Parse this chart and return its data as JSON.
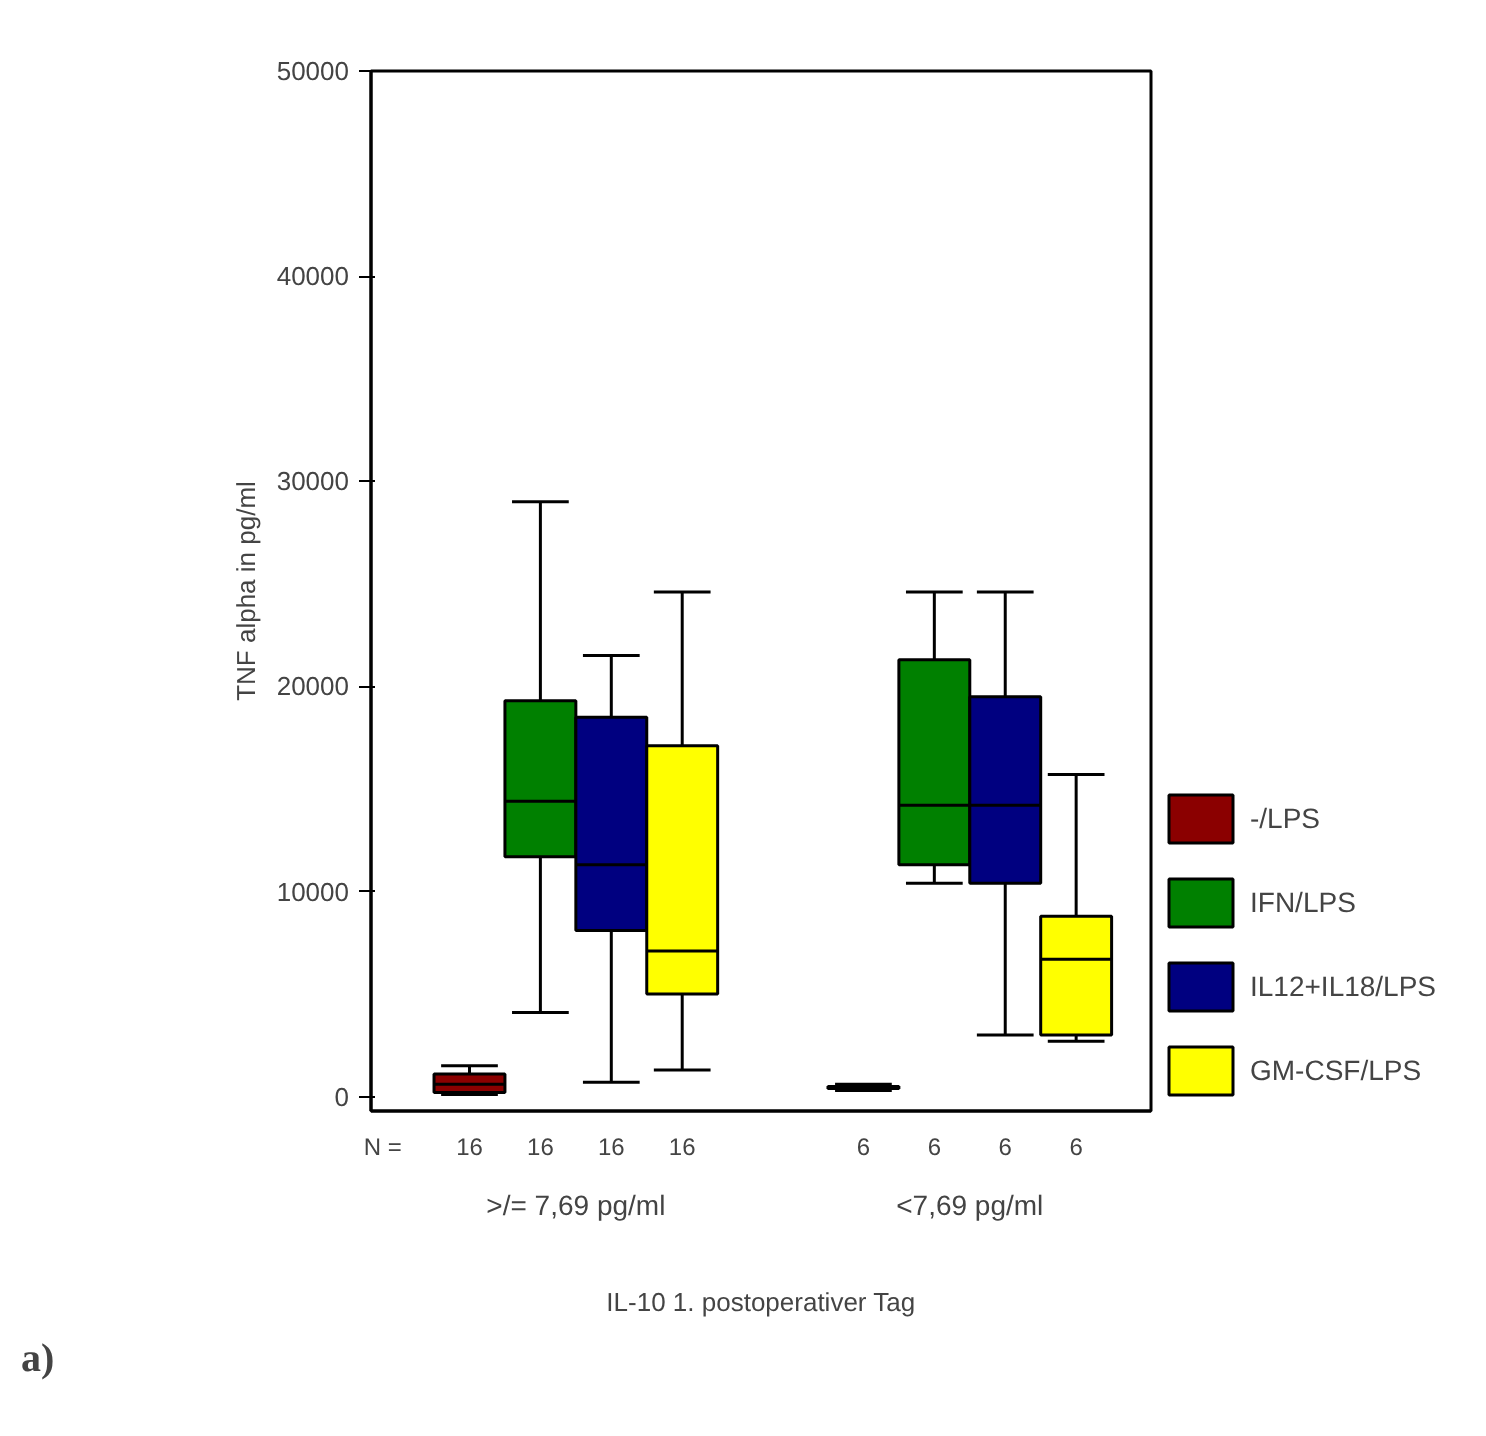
{
  "chart_data": {
    "type": "box",
    "xlabel": "IL-10 1. postoperativer Tag",
    "ylabel": "TNF alpha in pg/ml",
    "categories": [
      ">/= 7,69 pg/ml",
      "<7,69 pg/ml"
    ],
    "series": [
      {
        "name": "-/LPS",
        "color": "#8b0000",
        "boxes": [
          {
            "low": 100,
            "q1": 200,
            "median": 600,
            "q3": 1100,
            "high": 1500
          },
          {
            "low": 300,
            "q1": 400,
            "median": 450,
            "q3": 500,
            "high": 600
          }
        ]
      },
      {
        "name": "IFN/LPS",
        "color": "#008000",
        "boxes": [
          {
            "low": 4100,
            "q1": 11700,
            "median": 14400,
            "q3": 19300,
            "high": 29000
          },
          {
            "low": 10400,
            "q1": 11300,
            "median": 14200,
            "q3": 21300,
            "high": 24600
          }
        ]
      },
      {
        "name": "IL12+IL18/LPS",
        "color": "#000080",
        "boxes": [
          {
            "low": 700,
            "q1": 8100,
            "median": 11300,
            "q3": 18500,
            "high": 21500
          },
          {
            "low": 3000,
            "q1": 10400,
            "median": 14200,
            "q3": 19500,
            "high": 24600
          }
        ]
      },
      {
        "name": "GM-CSF/LPS",
        "color": "#ffff00",
        "boxes": [
          {
            "low": 1300,
            "q1": 5000,
            "median": 7100,
            "q3": 17100,
            "high": 24600
          },
          {
            "low": 2700,
            "q1": 3000,
            "median": 6700,
            "q3": 8800,
            "high": 15700
          }
        ]
      }
    ],
    "ylim": [
      -700,
      50000
    ],
    "yticks": [
      0,
      10000,
      20000,
      30000,
      40000,
      50000
    ],
    "grid": false,
    "legend": "right",
    "annotations": [
      "N =",
      "16",
      "16",
      "16",
      "16",
      "6",
      "6",
      "6",
      "6",
      "a)"
    ]
  }
}
